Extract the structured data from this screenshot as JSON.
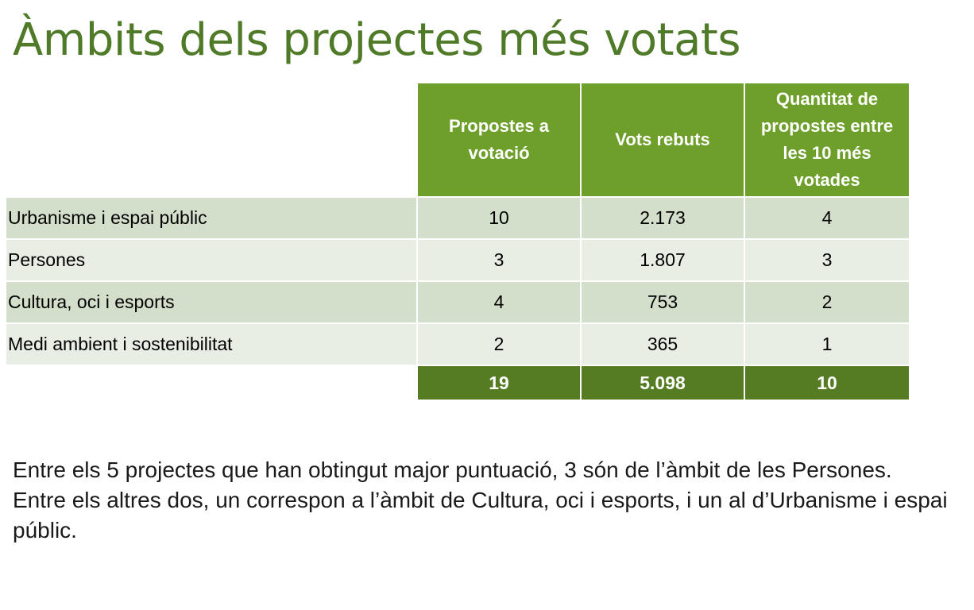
{
  "title": "Àmbits dels projectes més votats",
  "table": {
    "headers": [
      "",
      "Propostes a votació",
      "Vots rebuts",
      "Quantitat de propostes entre les 10 més votades"
    ],
    "rows": [
      [
        "Urbanisme i espai públic",
        "10",
        "2.173",
        "4"
      ],
      [
        "Persones",
        "3",
        "1.807",
        "3"
      ],
      [
        "Cultura, oci i esports",
        "4",
        "753",
        "2"
      ],
      [
        "Medi ambient i sostenibilitat",
        "2",
        "365",
        "1"
      ]
    ],
    "totals": [
      "",
      "19",
      "5.098",
      "10"
    ]
  },
  "note": "Entre els 5 projectes que han obtingut major puntuació, 3 són de l’àmbit de les Persones. Entre els altres dos, un correspon a l’àmbit de Cultura, oci i esports, i un al d’Urbanisme i espai públic.",
  "colors": {
    "title": "#4f7a28",
    "header": "#6d9f2a",
    "row_odd": "#d4dfcb",
    "row_even": "#e9eee4",
    "total": "#557c22"
  }
}
